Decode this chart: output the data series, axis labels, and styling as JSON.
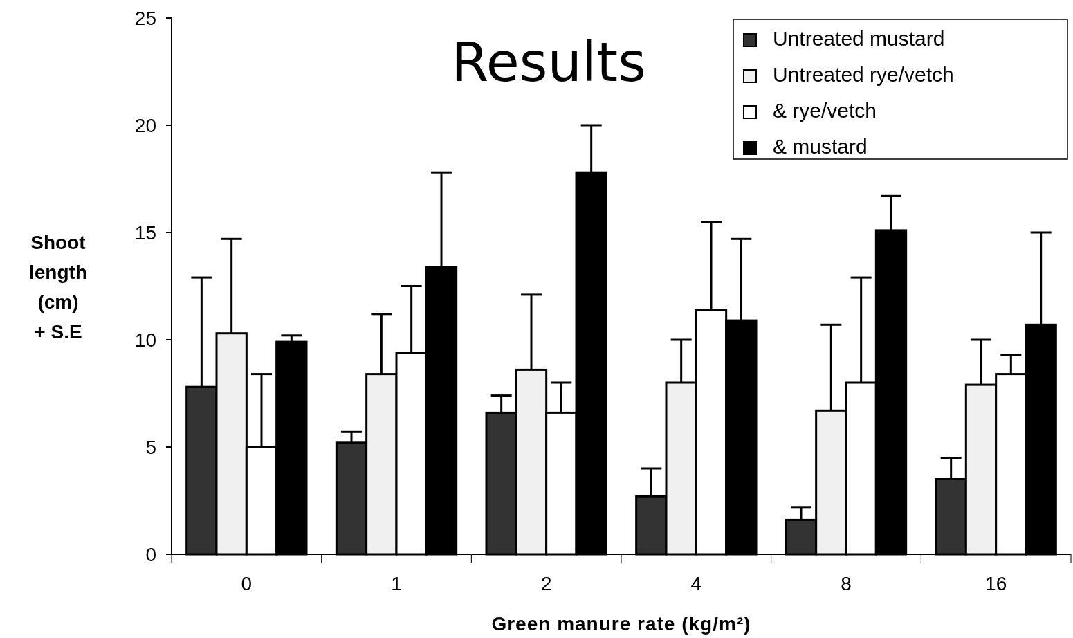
{
  "chart_data": {
    "type": "bar",
    "title": "Results",
    "xlabel": "Green manure rate (kg/m²)",
    "ylabel": "Shoot\nlength\n(cm)\n+ S.E",
    "categories": [
      "0",
      "1",
      "2",
      "4",
      "8",
      "16"
    ],
    "ylim": [
      0,
      25
    ],
    "yticks": [
      0,
      5,
      10,
      15,
      20,
      25
    ],
    "grid": false,
    "legend": "top right",
    "series": [
      {
        "name": "Untreated mustard",
        "color": "#333333",
        "values": [
          7.8,
          5.2,
          6.6,
          2.7,
          1.6,
          3.5
        ],
        "errors": [
          [
            7.8,
            12.9
          ],
          [
            5.2,
            5.7
          ],
          [
            6.6,
            7.4
          ],
          [
            2.7,
            4.0
          ],
          [
            1.6,
            2.2
          ],
          [
            3.5,
            4.5
          ]
        ]
      },
      {
        "name": "Untreated rye/vetch",
        "color": "#f0f0f0",
        "values": [
          10.3,
          8.4,
          8.6,
          8.0,
          6.7,
          7.9
        ],
        "errors": [
          [
            10.3,
            14.7
          ],
          [
            8.4,
            11.2
          ],
          [
            8.6,
            12.1
          ],
          [
            8.0,
            10.0
          ],
          [
            6.7,
            10.7
          ],
          [
            7.9,
            10.0
          ]
        ]
      },
      {
        "name": "& rye/vetch",
        "color": "#ffffff",
        "values": [
          5.0,
          9.4,
          6.6,
          11.4,
          8.0,
          8.4
        ],
        "errors": [
          [
            5.0,
            8.4
          ],
          [
            9.4,
            12.5
          ],
          [
            6.6,
            8.0
          ],
          [
            11.4,
            15.5
          ],
          [
            8.0,
            12.9
          ],
          [
            8.4,
            9.3
          ]
        ]
      },
      {
        "name": "& mustard",
        "color": "#000000",
        "values": [
          9.9,
          13.4,
          17.8,
          10.9,
          15.1,
          10.7
        ],
        "errors": [
          [
            9.9,
            10.2
          ],
          [
            13.4,
            17.8
          ],
          [
            17.8,
            20.0
          ],
          [
            10.9,
            14.7
          ],
          [
            15.1,
            16.7
          ],
          [
            10.7,
            15.0
          ]
        ]
      }
    ]
  }
}
